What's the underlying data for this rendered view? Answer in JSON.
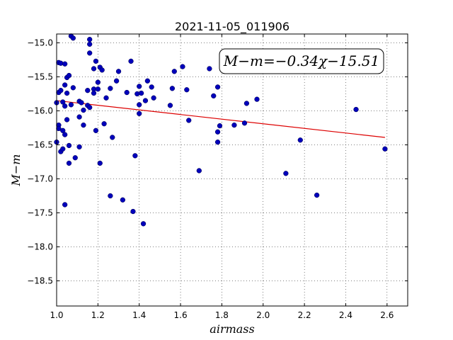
{
  "chart_data": {
    "type": "scatter",
    "title": "2021-11-05_011906",
    "xlabel": "airmass",
    "ylabel": "M−m",
    "xlim": [
      1.0,
      2.7
    ],
    "ylim": [
      -18.87,
      -14.87
    ],
    "ylim_inverted": true,
    "grid": true,
    "x_ticks": [
      1.0,
      1.2,
      1.4,
      1.6,
      1.8,
      2.0,
      2.2,
      2.4,
      2.6
    ],
    "x_tick_labels": [
      "1.0",
      "1.2",
      "1.4",
      "1.6",
      "1.8",
      "2.0",
      "2.2",
      "2.4",
      "2.6"
    ],
    "y_ticks": [
      -15.0,
      -15.5,
      -16.0,
      -16.5,
      -17.0,
      -17.5,
      -18.0,
      -18.5
    ],
    "y_tick_labels": [
      "−15.0",
      "−15.5",
      "−16.0",
      "−16.5",
      "−17.0",
      "−17.5",
      "−18.0",
      "−18.5"
    ],
    "annotation": "M−m=−0.34χ−15.51",
    "annotation_position": "top-right",
    "fit": {
      "slope": -0.34,
      "intercept": -15.51,
      "x_range": [
        1.0,
        2.59
      ],
      "color": "#dd0000"
    },
    "points_color": "#0000bb",
    "points": [
      {
        "x": 1.0,
        "y": -15.88
      },
      {
        "x": 1.0,
        "y": -16.46
      },
      {
        "x": 1.01,
        "y": -15.29
      },
      {
        "x": 1.01,
        "y": -15.73
      },
      {
        "x": 1.01,
        "y": -16.21
      },
      {
        "x": 1.01,
        "y": -16.26
      },
      {
        "x": 1.02,
        "y": -15.7
      },
      {
        "x": 1.02,
        "y": -15.3
      },
      {
        "x": 1.02,
        "y": -16.6
      },
      {
        "x": 1.03,
        "y": -16.56
      },
      {
        "x": 1.03,
        "y": -15.87
      },
      {
        "x": 1.03,
        "y": -16.29
      },
      {
        "x": 1.04,
        "y": -15.31
      },
      {
        "x": 1.04,
        "y": -15.93
      },
      {
        "x": 1.04,
        "y": -15.62
      },
      {
        "x": 1.04,
        "y": -16.35
      },
      {
        "x": 1.04,
        "y": -17.38
      },
      {
        "x": 1.05,
        "y": -15.74
      },
      {
        "x": 1.05,
        "y": -16.13
      },
      {
        "x": 1.05,
        "y": -15.51
      },
      {
        "x": 1.06,
        "y": -15.48
      },
      {
        "x": 1.06,
        "y": -16.51
      },
      {
        "x": 1.06,
        "y": -16.77
      },
      {
        "x": 1.07,
        "y": -15.91
      },
      {
        "x": 1.07,
        "y": -14.9
      },
      {
        "x": 1.08,
        "y": -14.93
      },
      {
        "x": 1.08,
        "y": -15.66
      },
      {
        "x": 1.09,
        "y": -16.69
      },
      {
        "x": 1.11,
        "y": -15.86
      },
      {
        "x": 1.11,
        "y": -16.09
      },
      {
        "x": 1.11,
        "y": -16.53
      },
      {
        "x": 1.12,
        "y": -15.88
      },
      {
        "x": 1.13,
        "y": -16.21
      },
      {
        "x": 1.13,
        "y": -15.99
      },
      {
        "x": 1.15,
        "y": -15.7
      },
      {
        "x": 1.15,
        "y": -15.92
      },
      {
        "x": 1.16,
        "y": -15.95
      },
      {
        "x": 1.16,
        "y": -14.95
      },
      {
        "x": 1.16,
        "y": -15.02
      },
      {
        "x": 1.16,
        "y": -15.15
      },
      {
        "x": 1.18,
        "y": -15.68
      },
      {
        "x": 1.18,
        "y": -15.38
      },
      {
        "x": 1.18,
        "y": -15.74
      },
      {
        "x": 1.19,
        "y": -15.27
      },
      {
        "x": 1.19,
        "y": -16.29
      },
      {
        "x": 1.2,
        "y": -15.68
      },
      {
        "x": 1.2,
        "y": -15.58
      },
      {
        "x": 1.21,
        "y": -15.36
      },
      {
        "x": 1.21,
        "y": -16.77
      },
      {
        "x": 1.22,
        "y": -15.4
      },
      {
        "x": 1.23,
        "y": -16.19
      },
      {
        "x": 1.24,
        "y": -15.81
      },
      {
        "x": 1.26,
        "y": -15.67
      },
      {
        "x": 1.26,
        "y": -17.25
      },
      {
        "x": 1.27,
        "y": -16.39
      },
      {
        "x": 1.29,
        "y": -15.56
      },
      {
        "x": 1.3,
        "y": -15.42
      },
      {
        "x": 1.32,
        "y": -17.31
      },
      {
        "x": 1.34,
        "y": -15.73
      },
      {
        "x": 1.36,
        "y": -15.27
      },
      {
        "x": 1.37,
        "y": -17.48
      },
      {
        "x": 1.38,
        "y": -16.66
      },
      {
        "x": 1.39,
        "y": -15.75
      },
      {
        "x": 1.4,
        "y": -15.91
      },
      {
        "x": 1.4,
        "y": -15.64
      },
      {
        "x": 1.4,
        "y": -16.04
      },
      {
        "x": 1.41,
        "y": -15.74
      },
      {
        "x": 1.42,
        "y": -17.66
      },
      {
        "x": 1.43,
        "y": -15.85
      },
      {
        "x": 1.44,
        "y": -15.56
      },
      {
        "x": 1.46,
        "y": -15.65
      },
      {
        "x": 1.47,
        "y": -15.81
      },
      {
        "x": 1.55,
        "y": -15.92
      },
      {
        "x": 1.56,
        "y": -15.67
      },
      {
        "x": 1.57,
        "y": -15.42
      },
      {
        "x": 1.61,
        "y": -15.35
      },
      {
        "x": 1.63,
        "y": -15.69
      },
      {
        "x": 1.64,
        "y": -16.14
      },
      {
        "x": 1.69,
        "y": -16.88
      },
      {
        "x": 1.74,
        "y": -15.38
      },
      {
        "x": 1.76,
        "y": -15.78
      },
      {
        "x": 1.78,
        "y": -15.65
      },
      {
        "x": 1.78,
        "y": -16.46
      },
      {
        "x": 1.78,
        "y": -16.31
      },
      {
        "x": 1.79,
        "y": -16.22
      },
      {
        "x": 1.86,
        "y": -16.21
      },
      {
        "x": 1.91,
        "y": -16.18
      },
      {
        "x": 1.92,
        "y": -15.89
      },
      {
        "x": 1.97,
        "y": -15.83
      },
      {
        "x": 2.11,
        "y": -16.92
      },
      {
        "x": 2.18,
        "y": -16.43
      },
      {
        "x": 2.26,
        "y": -17.24
      },
      {
        "x": 2.45,
        "y": -15.98
      },
      {
        "x": 2.59,
        "y": -16.56
      }
    ]
  }
}
